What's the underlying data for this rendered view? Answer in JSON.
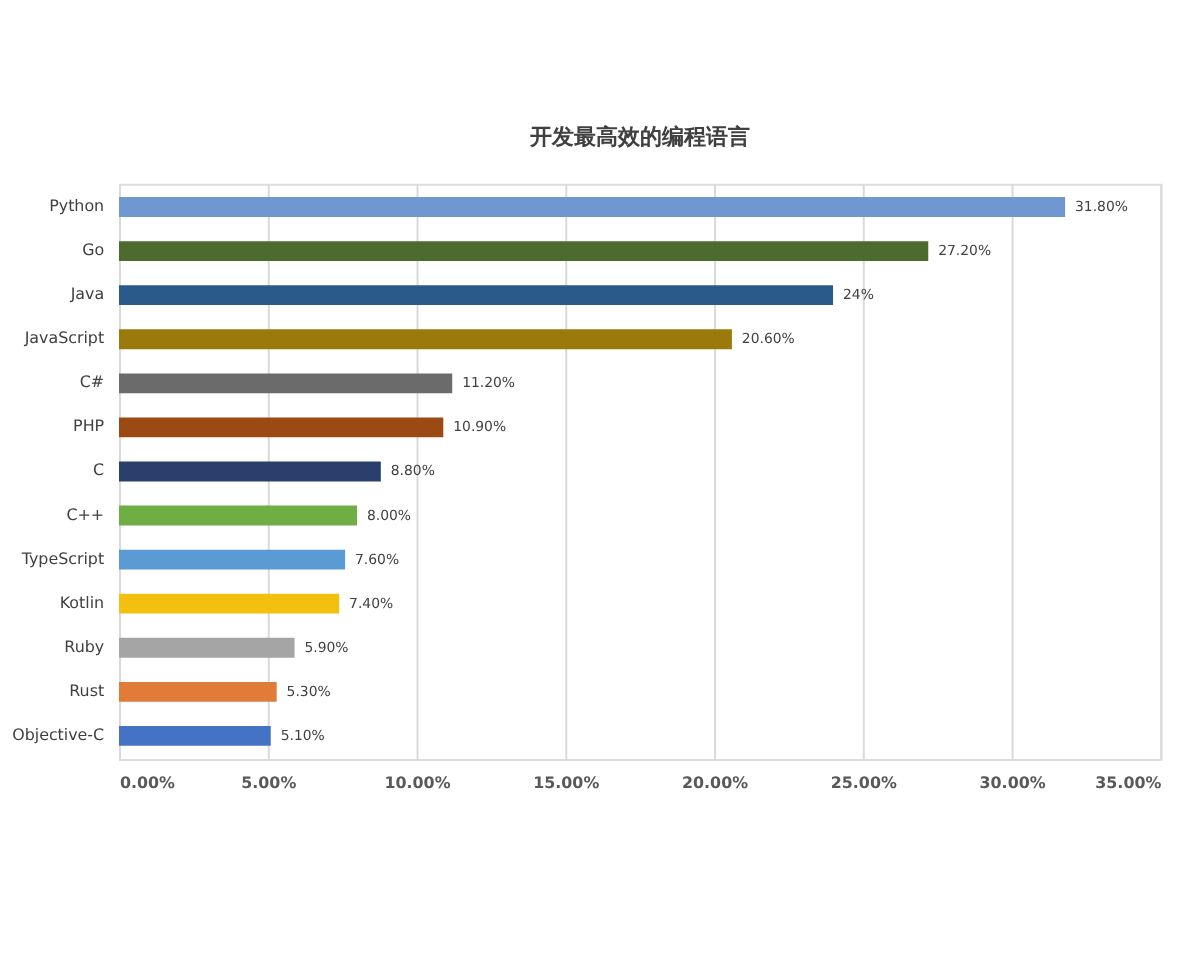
{
  "chart_data": {
    "type": "bar",
    "orientation": "horizontal",
    "title": "开发最高效的编程语言",
    "categories": [
      "Python",
      "Go",
      "Java",
      "JavaScript",
      "C#",
      "PHP",
      "C",
      "C++",
      "TypeScript",
      "Kotlin",
      "Ruby",
      "Rust",
      "Objective-C"
    ],
    "values": [
      31.8,
      27.2,
      24,
      20.6,
      11.2,
      10.9,
      8.8,
      8.0,
      7.6,
      7.4,
      5.9,
      5.3,
      5.1
    ],
    "value_labels": [
      "31.80%",
      "27.20%",
      "24%",
      "20.60%",
      "11.20%",
      "10.90%",
      "8.80%",
      "8.00%",
      "7.60%",
      "7.40%",
      "5.90%",
      "5.30%",
      "5.10%"
    ],
    "colors": [
      "#6f97d0",
      "#4e6b2e",
      "#2a5a8a",
      "#9a7a0a",
      "#6b6b6b",
      "#9c4a14",
      "#2a3f6b",
      "#6fae45",
      "#5b9bd5",
      "#f4c010",
      "#a5a5a5",
      "#e07b39",
      "#4472c4"
    ],
    "xlim": [
      0,
      35
    ],
    "xticks": [
      {
        "value": 0,
        "label": "0.00%"
      },
      {
        "value": 5,
        "label": "5.00%"
      },
      {
        "value": 10,
        "label": "10.00%"
      },
      {
        "value": 15,
        "label": "15.00%"
      },
      {
        "value": 20,
        "label": "20.00%"
      },
      {
        "value": 25,
        "label": "25.00%"
      },
      {
        "value": 30,
        "label": "30.00%"
      },
      {
        "value": 35,
        "label": "35.00%"
      }
    ],
    "grid": "x"
  }
}
